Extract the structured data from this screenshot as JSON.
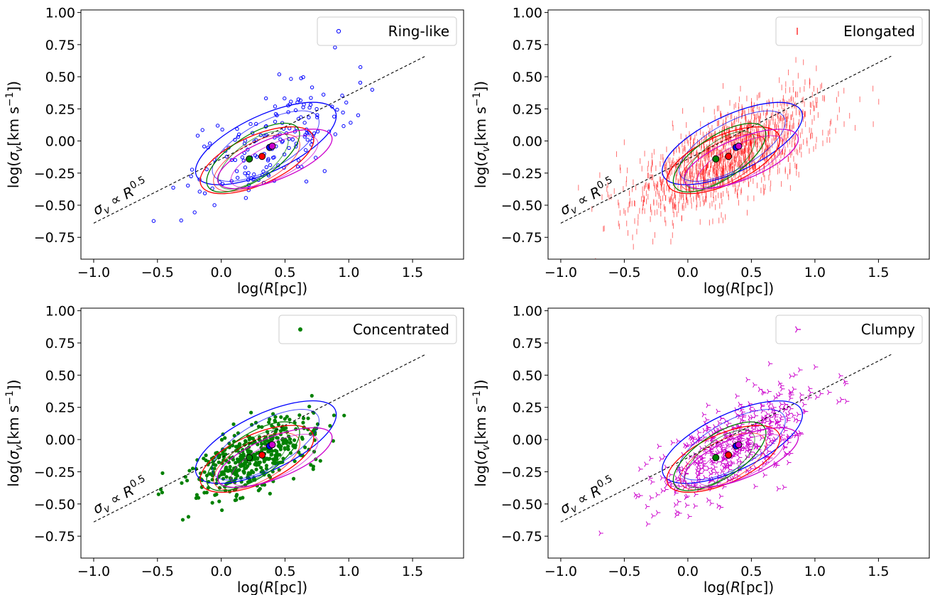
{
  "chart_data": [
    {
      "type": "scatter",
      "legend": "Ring-like",
      "marker": "open-circle",
      "color": "#0000ff",
      "xlabel": "log(R[pc])",
      "ylabel": "log(σv[km s−1])",
      "xlim": [
        -1.1,
        1.9
      ],
      "ylim": [
        -0.92,
        1.02
      ],
      "xticks": [
        -1.0,
        -0.5,
        0.0,
        0.5,
        1.0,
        1.5
      ],
      "yticks": [
        -0.75,
        -0.5,
        -0.25,
        0.0,
        0.25,
        0.5,
        0.75,
        1.0
      ],
      "relation_label": "σv ∝ R0.5",
      "legend_position": "upper right"
    },
    {
      "type": "scatter",
      "legend": "Elongated",
      "marker": "vertical-line",
      "color": "#ff0000",
      "xlabel": "log(R[pc])",
      "ylabel": "log(σv[km s−1])",
      "xlim": [
        -1.1,
        1.9
      ],
      "ylim": [
        -0.92,
        1.02
      ],
      "xticks": [
        -1.0,
        -0.5,
        0.0,
        0.5,
        1.0,
        1.5
      ],
      "yticks": [
        -0.75,
        -0.5,
        -0.25,
        0.0,
        0.25,
        0.5,
        0.75,
        1.0
      ],
      "relation_label": "σv ∝ R0.5",
      "legend_position": "upper right"
    },
    {
      "type": "scatter",
      "legend": "Concentrated",
      "marker": "filled-dot",
      "color": "#008000",
      "xlabel": "log(R[pc])",
      "ylabel": "log(σv[km s−1])",
      "xlim": [
        -1.1,
        1.9
      ],
      "ylim": [
        -0.92,
        1.02
      ],
      "xticks": [
        -1.0,
        -0.5,
        0.0,
        0.5,
        1.0,
        1.5
      ],
      "yticks": [
        -0.75,
        -0.5,
        -0.25,
        0.0,
        0.25,
        0.5,
        0.75,
        1.0
      ],
      "relation_label": "σv ∝ R0.5",
      "legend_position": "upper right"
    },
    {
      "type": "scatter",
      "legend": "Clumpy",
      "marker": "tri-right",
      "color": "#cc00cc",
      "xlabel": "log(R[pc])",
      "ylabel": "log(σv[km s−1])",
      "xlim": [
        -1.1,
        1.9
      ],
      "ylim": [
        -0.92,
        1.02
      ],
      "xticks": [
        -1.0,
        -0.5,
        0.0,
        0.5,
        1.0,
        1.5
      ],
      "yticks": [
        -0.75,
        -0.5,
        -0.25,
        0.0,
        0.25,
        0.5,
        0.75,
        1.0
      ],
      "relation_label": "σv ∝ R0.5",
      "legend_position": "upper right"
    }
  ],
  "shared": {
    "relation_line": {
      "x": [
        -1.0,
        1.6
      ],
      "y": [
        -0.64,
        0.66
      ],
      "style": "dashed"
    },
    "medians": [
      {
        "name": "Ring-like",
        "x": 0.38,
        "y": -0.05,
        "color": "#0000ff"
      },
      {
        "name": "Elongated",
        "x": 0.32,
        "y": -0.12,
        "color": "#ff0000"
      },
      {
        "name": "Concentrated",
        "x": 0.22,
        "y": -0.14,
        "color": "#008000"
      },
      {
        "name": "Clumpy",
        "x": 0.4,
        "y": -0.04,
        "color": "#cc00cc"
      }
    ],
    "contours": [
      {
        "name": "Ring-like",
        "color": "#0000ff",
        "outer": {
          "cx": 0.35,
          "cy": -0.02,
          "rx": 0.6,
          "ry": 0.22,
          "angle": 25
        },
        "inner": null
      },
      {
        "name": "Elongated",
        "color": "#ff0000",
        "outer": {
          "cx": 0.28,
          "cy": -0.15,
          "rx": 0.48,
          "ry": 0.19,
          "angle": 24
        },
        "inner": null
      },
      {
        "name": "Concentrated",
        "color": "#008000",
        "outer": {
          "cx": 0.25,
          "cy": -0.13,
          "rx": 0.42,
          "ry": 0.17,
          "angle": 33
        },
        "inner": null
      },
      {
        "name": "Clumpy",
        "color": "#cc00cc",
        "outer": {
          "cx": 0.42,
          "cy": -0.14,
          "rx": 0.48,
          "ry": 0.16,
          "angle": 22
        },
        "inner": null
      }
    ]
  }
}
